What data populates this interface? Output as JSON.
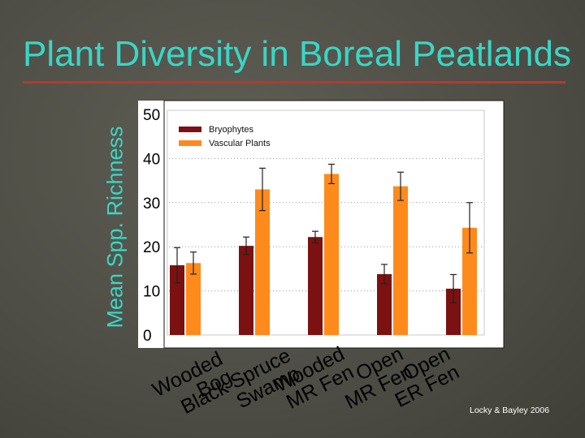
{
  "slide": {
    "title": "Plant Diversity in Boreal Peatlands",
    "source": "Locky & Bayley 2006",
    "colors": {
      "title": "#39d6c6",
      "rule": "#b73a2c",
      "background": "#4d4d45"
    }
  },
  "chart_data": {
    "type": "bar",
    "title": "",
    "ylabel": "Mean Spp. Richness",
    "xlabel": "",
    "ylim": [
      0,
      50
    ],
    "yticks": [
      "0",
      "10",
      "20",
      "30",
      "40",
      "50"
    ],
    "grid": true,
    "legend_position": "top-left",
    "categories": [
      [
        "Wooded",
        "Bog"
      ],
      [
        "Black Spruce",
        "Swamp"
      ],
      [
        "Wooded",
        "MR Fen"
      ],
      [
        "Open",
        "MR Fen"
      ],
      [
        "Open",
        "ER Fen"
      ]
    ],
    "series": [
      {
        "name": "Bryophytes",
        "color": "#7b1110",
        "values": [
          15.8,
          20.2,
          22.2,
          13.8,
          10.5
        ],
        "errors": [
          4.0,
          2.0,
          1.3,
          2.2,
          3.2
        ]
      },
      {
        "name": "Vascular Plants",
        "color": "#ff8a1c",
        "values": [
          16.3,
          33.0,
          36.5,
          33.7,
          24.3
        ],
        "errors": [
          2.5,
          4.8,
          2.2,
          3.2,
          5.7
        ]
      }
    ]
  }
}
